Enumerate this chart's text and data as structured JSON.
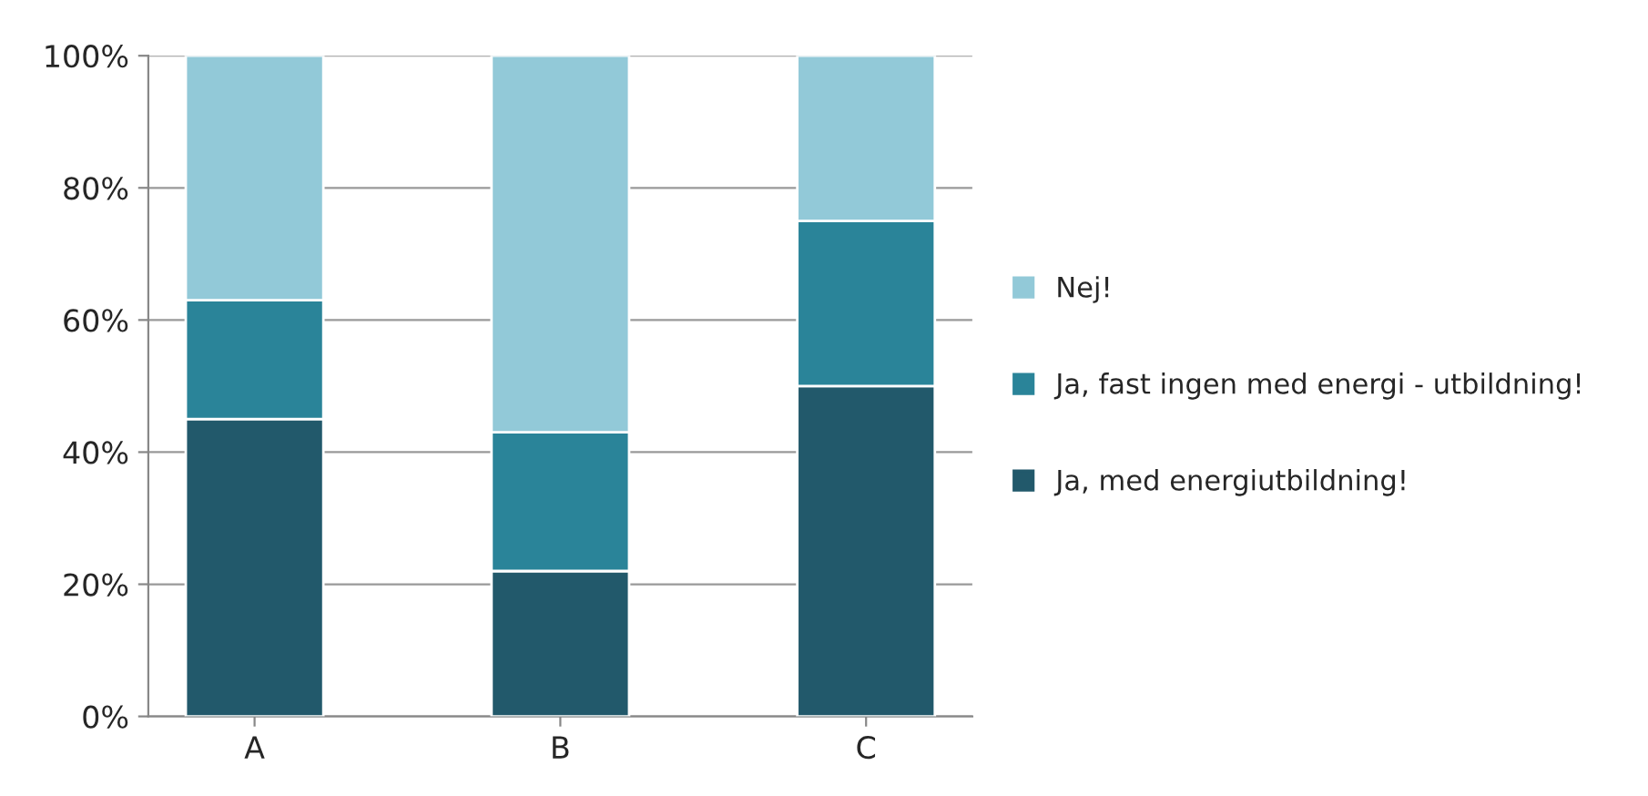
{
  "chart_data": {
    "type": "bar",
    "stacked": true,
    "categories": [
      "A",
      "B",
      "C"
    ],
    "series": [
      {
        "name": "Ja, med energiutbildning!",
        "color": "#22596b",
        "values": [
          45,
          22,
          50
        ]
      },
      {
        "name": "Ja, fast ingen med energi - utbildning!",
        "color": "#2a8499",
        "values": [
          18,
          21,
          25
        ]
      },
      {
        "name": "Nej!",
        "color": "#92c9d8",
        "values": [
          37,
          57,
          25
        ]
      }
    ],
    "ylim": [
      0,
      100
    ],
    "yticks": [
      {
        "value": 0,
        "label": "0%"
      },
      {
        "value": 20,
        "label": "20%"
      },
      {
        "value": 40,
        "label": "40%"
      },
      {
        "value": 60,
        "label": "60%"
      },
      {
        "value": 80,
        "label": "80%"
      },
      {
        "value": 100,
        "label": "100%"
      }
    ],
    "grid": "y",
    "legend": "right"
  }
}
